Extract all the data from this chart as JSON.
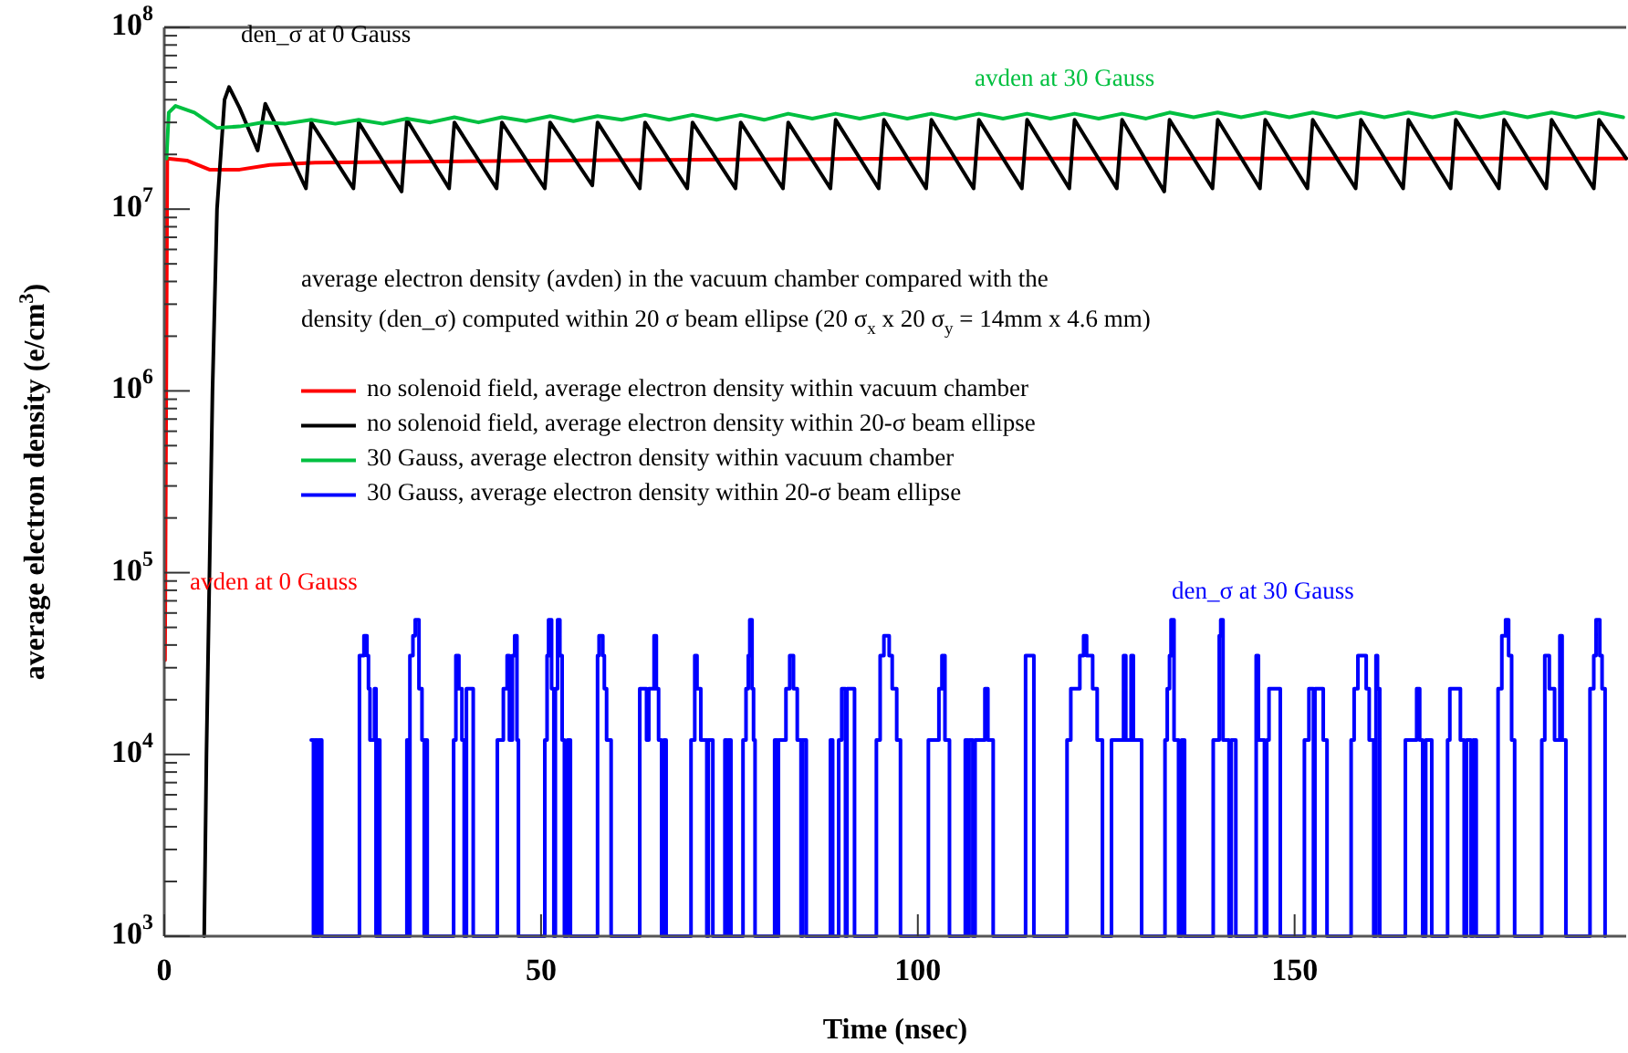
{
  "chart_data": {
    "type": "line",
    "xlabel": "Time (nsec)",
    "ylabel": "average electron density (e/cm$^{3}$)",
    "xlim": [
      0,
      194
    ],
    "xticks": [
      0,
      50,
      100,
      150
    ],
    "ylim": [
      1000,
      100000000
    ],
    "log": "y",
    "yticks": [
      {
        "value": 1000,
        "label": "10$^{3}$"
      },
      {
        "value": 10000,
        "label": "10$^{4}$"
      },
      {
        "value": 100000,
        "label": "10$^{5}$"
      },
      {
        "value": 1000000,
        "label": "10$^{6}$"
      },
      {
        "value": 10000000,
        "label": "10$^{7}$"
      },
      {
        "value": 100000000,
        "label": "10$^{8}$"
      },
      {
        "value": 2000,
        "label": null
      },
      {
        "value": 3000,
        "label": null
      },
      {
        "value": 4000,
        "label": null
      },
      {
        "value": 5000,
        "label": null
      },
      {
        "value": 6000,
        "label": null
      },
      {
        "value": 7000,
        "label": null
      },
      {
        "value": 8000,
        "label": null
      },
      {
        "value": 9000,
        "label": null
      },
      {
        "value": 20000,
        "label": null
      },
      {
        "value": 30000,
        "label": null
      },
      {
        "value": 40000,
        "label": null
      },
      {
        "value": 50000,
        "label": null
      },
      {
        "value": 60000,
        "label": null
      },
      {
        "value": 70000,
        "label": null
      },
      {
        "value": 80000,
        "label": null
      },
      {
        "value": 90000,
        "label": null
      },
      {
        "value": 200000,
        "label": null
      },
      {
        "value": 300000,
        "label": null
      },
      {
        "value": 400000,
        "label": null
      },
      {
        "value": 500000,
        "label": null
      },
      {
        "value": 600000,
        "label": null
      },
      {
        "value": 700000,
        "label": null
      },
      {
        "value": 800000,
        "label": null
      },
      {
        "value": 900000,
        "label": null
      },
      {
        "value": 2000000,
        "label": null
      },
      {
        "value": 3000000,
        "label": null
      },
      {
        "value": 4000000,
        "label": null
      },
      {
        "value": 5000000,
        "label": null
      },
      {
        "value": 6000000,
        "label": null
      },
      {
        "value": 7000000,
        "label": null
      },
      {
        "value": 8000000,
        "label": null
      },
      {
        "value": 9000000,
        "label": null
      },
      {
        "value": 20000000,
        "label": null
      },
      {
        "value": 30000000,
        "label": null
      },
      {
        "value": 40000000,
        "label": null
      },
      {
        "value": 50000000,
        "label": null
      },
      {
        "value": 60000000,
        "label": null
      },
      {
        "value": 70000000,
        "label": null
      },
      {
        "value": 80000000,
        "label": null
      },
      {
        "value": 90000000,
        "label": null
      }
    ],
    "grid": false,
    "legend": "left",
    "marker": "none",
    "line_style": "solid",
    "series": [
      {
        "name": "no solenoid field, average electron density within vacuum chamber",
        "color": "#ff0000",
        "x": [
          0.1,
          0.4,
          3,
          6,
          10,
          14,
          20,
          50,
          100,
          150,
          194
        ],
        "values": [
          33000,
          19000000,
          18500000,
          16500000,
          16500000,
          17500000,
          18000000,
          18500000,
          19000000,
          19000000,
          19000000
        ]
      },
      {
        "name": "no solenoid field, average electron density within 20-σ beam ellipse",
        "color": "#000000",
        "x": [
          5.3,
          5.6,
          6.0,
          6.4,
          7.0,
          8.0,
          8.6,
          10.0,
          12.4,
          13.4,
          15.0,
          18.8,
          19.5,
          25.1,
          25.8,
          31.5,
          32.2,
          37.8,
          38.5,
          44.1,
          44.8,
          50.5,
          51.2,
          56.8,
          57.5,
          63.1,
          63.8,
          69.4,
          70.1,
          75.8,
          76.5,
          82.1,
          82.8,
          88.4,
          89.1,
          94.8,
          95.5,
          101.1,
          101.8,
          107.4,
          108.1,
          113.8,
          114.5,
          120.1,
          120.8,
          126.4,
          127.1,
          132.7,
          133.4,
          139.1,
          139.8,
          145.4,
          146.1,
          151.7,
          152.4,
          158.1,
          158.8,
          164.4,
          165.1,
          170.7,
          171.4,
          177.1,
          177.8,
          183.4,
          184.1,
          189.7,
          190.4,
          194
        ],
        "values": [
          1000,
          10000,
          100000,
          1000000,
          10000000,
          40000000,
          47000000,
          36000000,
          21000000,
          38000000,
          28000000,
          13000000,
          30000000,
          13000000,
          30000000,
          12500000,
          31000000,
          13000000,
          30000000,
          13000000,
          30000000,
          13000000,
          30000000,
          13500000,
          30000000,
          13000000,
          30000000,
          13000000,
          30000000,
          13000000,
          30000000,
          13000000,
          30000000,
          13000000,
          31000000,
          13000000,
          31000000,
          13000000,
          31000000,
          13000000,
          31000000,
          13000000,
          31000000,
          13000000,
          31000000,
          13000000,
          31000000,
          12500000,
          31000000,
          13000000,
          31000000,
          13000000,
          31000000,
          13000000,
          31000000,
          13000000,
          31000000,
          13000000,
          31000000,
          13000000,
          31000000,
          13000000,
          31000000,
          13000000,
          31000000,
          13000000,
          31000000,
          19000000
        ]
      },
      {
        "name": "30 Gauss, average electron density within vacuum chamber",
        "color": "#00c040",
        "x": [
          0.3,
          0.6,
          1.5,
          4,
          7,
          10,
          13,
          16,
          19.5,
          22.7,
          25.8,
          29.0,
          32.2,
          35.3,
          38.5,
          41.7,
          44.8,
          48.0,
          51.2,
          54.3,
          57.5,
          60.7,
          63.8,
          67.0,
          70.1,
          73.3,
          76.5,
          79.6,
          82.8,
          86.0,
          89.1,
          92.3,
          95.5,
          98.6,
          101.8,
          105.0,
          108.1,
          111.3,
          114.5,
          117.6,
          120.8,
          124.0,
          127.1,
          130.3,
          133.4,
          136.6,
          139.8,
          142.9,
          146.1,
          149.3,
          152.4,
          155.6,
          158.8,
          161.9,
          165.1,
          168.3,
          171.4,
          174.6,
          177.8,
          180.9,
          184.1,
          187.3,
          190.4,
          193.6
        ],
        "values": [
          19000000,
          34000000,
          37000000,
          34000000,
          28000000,
          28500000,
          30000000,
          29500000,
          31000000,
          29500000,
          31000000,
          29500000,
          31500000,
          30000000,
          32000000,
          30000000,
          32000000,
          30500000,
          32500000,
          30500000,
          32500000,
          31000000,
          33000000,
          31000000,
          33000000,
          31000000,
          33000000,
          31000000,
          33500000,
          31500000,
          33500000,
          31500000,
          33500000,
          31500000,
          33500000,
          31500000,
          33500000,
          31500000,
          33500000,
          31500000,
          33500000,
          31500000,
          33500000,
          31500000,
          34000000,
          32000000,
          34000000,
          32000000,
          34000000,
          32000000,
          34000000,
          32000000,
          34000000,
          32000000,
          34000000,
          32000000,
          34000000,
          32000000,
          34000000,
          32000000,
          34000000,
          32000000,
          34000000,
          32000000
        ]
      },
      {
        "name": "30 Gauss, average electron density within 20-σ beam ellipse",
        "color": "#0000ff",
        "type": "step",
        "x": [
          19.5,
          19.8,
          20.0,
          20.3,
          20.5,
          20.9,
          25.9,
          26.5,
          26.9,
          27.1,
          27.3,
          27.9,
          28.1,
          28.3,
          28.6,
          32.2,
          32.5,
          32.6,
          33.0,
          33.3,
          33.8,
          34.2,
          34.5,
          34.6,
          34.9,
          38.4,
          38.7,
          39.1,
          39.5,
          39.8,
          40.1,
          41.0,
          44.2,
          45.0,
          45.5,
          45.8,
          46.2,
          46.5,
          46.8,
          47.0,
          50.5,
          50.8,
          51.0,
          51.4,
          51.7,
          51.9,
          52.2,
          52.5,
          52.8,
          53.1,
          53.5,
          53.9,
          57.5,
          57.7,
          58.2,
          58.4,
          58.7,
          59.3,
          63.1,
          64.0,
          64.3,
          65.0,
          65.3,
          65.6,
          66.0,
          66.3,
          66.6,
          69.9,
          70.4,
          70.7,
          71.2,
          72.0,
          72.2,
          72.8,
          74.4,
          74.7,
          74.9,
          75.2,
          76.8,
          77.2,
          77.5,
          77.7,
          78.0,
          78.2,
          78.4,
          81.0,
          81.3,
          81.5,
          82.5,
          83.0,
          83.5,
          84.0,
          84.5,
          84.7,
          85.2,
          88.4,
          88.7,
          89.5,
          89.9,
          90.4,
          90.6,
          91.6,
          94.5,
          95.0,
          95.5,
          96.2,
          96.6,
          97.2,
          97.7,
          101.4,
          102.8,
          103.2,
          103.6,
          104.2,
          106.3,
          106.6,
          106.8,
          107.3,
          107.6,
          108.9,
          109.3,
          110.0,
          114.3,
          115.4,
          119.8,
          120.3,
          121.5,
          122.0,
          122.4,
          123.2,
          123.8,
          124.5,
          125.7,
          127.3,
          127.6,
          128.3,
          128.6,
          129.7,
          132.8,
          133.1,
          133.4,
          133.6,
          134.0,
          134.6,
          135.0,
          135.4,
          139.2,
          140.0,
          140.2,
          140.5,
          141.3,
          141.6,
          142.2,
          144.9,
          145.2,
          146.0,
          146.3,
          146.6,
          148.1,
          151.3,
          151.9,
          152.5,
          152.7,
          153.8,
          154.3,
          157.5,
          157.9,
          158.4,
          159.5,
          159.9,
          160.5,
          160.8,
          161.0,
          161.3,
          164.7,
          166.2,
          166.6,
          167.0,
          167.4,
          168.2,
          170.3,
          170.6,
          172.0,
          172.5,
          172.8,
          173.4,
          173.7,
          174.1,
          177.0,
          177.5,
          178.0,
          178.4,
          178.8,
          179.2,
          182.8,
          183.2,
          183.8,
          184.5,
          185.2,
          185.5,
          186.0,
          189.2,
          189.7,
          190.0,
          190.5,
          190.8,
          191.2
        ],
        "values": [
          12000,
          1000,
          12000,
          1000,
          12000,
          1000,
          35000,
          45000,
          35000,
          23000,
          12000,
          23000,
          1000,
          12000,
          1000,
          12000,
          1000,
          35000,
          45000,
          55000,
          23000,
          12000,
          1000,
          12000,
          1000,
          12000,
          35000,
          23000,
          12000,
          1000,
          23000,
          1000,
          12000,
          23000,
          35000,
          12000,
          35000,
          45000,
          12000,
          1000,
          12000,
          35000,
          55000,
          23000,
          1000,
          23000,
          55000,
          35000,
          12000,
          1000,
          12000,
          1000,
          35000,
          45000,
          35000,
          23000,
          12000,
          1000,
          23000,
          12000,
          23000,
          45000,
          23000,
          12000,
          1000,
          12000,
          1000,
          12000,
          35000,
          23000,
          12000,
          1000,
          12000,
          1000,
          12000,
          1000,
          12000,
          1000,
          12000,
          23000,
          35000,
          55000,
          23000,
          12000,
          1000,
          12000,
          1000,
          12000,
          23000,
          35000,
          23000,
          12000,
          1000,
          12000,
          1000,
          12000,
          1000,
          12000,
          23000,
          1000,
          23000,
          1000,
          12000,
          35000,
          45000,
          35000,
          23000,
          12000,
          1000,
          12000,
          23000,
          35000,
          12000,
          1000,
          12000,
          1000,
          12000,
          1000,
          12000,
          23000,
          12000,
          1000,
          35000,
          1000,
          12000,
          23000,
          35000,
          45000,
          35000,
          23000,
          12000,
          1000,
          12000,
          35000,
          12000,
          35000,
          12000,
          1000,
          12000,
          23000,
          35000,
          55000,
          12000,
          1000,
          12000,
          1000,
          12000,
          45000,
          55000,
          12000,
          1000,
          12000,
          1000,
          35000,
          12000,
          1000,
          12000,
          23000,
          1000,
          12000,
          23000,
          1000,
          23000,
          12000,
          1000,
          12000,
          23000,
          35000,
          23000,
          12000,
          1000,
          35000,
          23000,
          1000,
          12000,
          23000,
          12000,
          1000,
          12000,
          1000,
          12000,
          23000,
          12000,
          1000,
          12000,
          1000,
          12000,
          1000,
          23000,
          45000,
          55000,
          35000,
          12000,
          1000,
          12000,
          35000,
          23000,
          12000,
          45000,
          12000,
          1000,
          23000,
          35000,
          55000,
          35000,
          23000,
          1000
        ]
      }
    ],
    "annotations": [
      "den_σ   at 0 Gauss",
      "avden at 30 Gauss",
      "avden at 0 Gauss",
      "den_σ  at 30 Gauss",
      "average electron density (avden) in the vacuum chamber compared with the",
      "density (den_σ) computed within 20 σ beam ellipse (20 σ$_{x}$ x 20 σ$_{y}$ = 14mm x 4.6 mm)"
    ]
  }
}
